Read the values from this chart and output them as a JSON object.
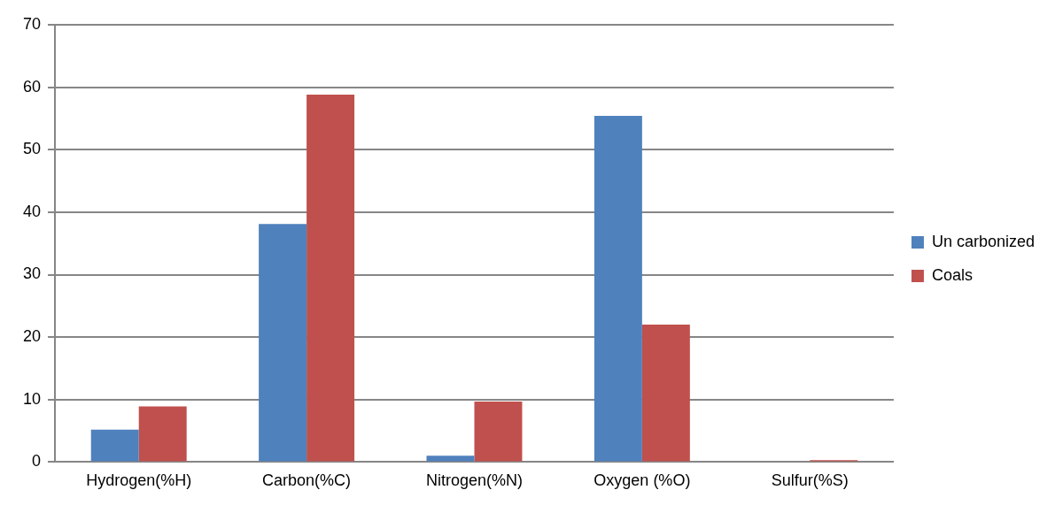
{
  "chart_data": {
    "type": "bar",
    "categories": [
      "Hydrogen(%H)",
      "Carbon(%C)",
      "Nitrogen(%N)",
      "Oxygen (%O)",
      "Sulfur(%S)"
    ],
    "series": [
      {
        "name": "Un carbonized",
        "color": "#4f81bd",
        "values": [
          5.2,
          38.1,
          1.0,
          55.4,
          0
        ]
      },
      {
        "name": "Coals",
        "color": "#c0504d",
        "values": [
          8.9,
          58.8,
          9.7,
          22,
          0.3
        ]
      }
    ],
    "ylim": [
      0,
      70
    ],
    "yticks": [
      0,
      10,
      20,
      30,
      40,
      50,
      60,
      70
    ],
    "grid": "y",
    "legend": "right"
  }
}
